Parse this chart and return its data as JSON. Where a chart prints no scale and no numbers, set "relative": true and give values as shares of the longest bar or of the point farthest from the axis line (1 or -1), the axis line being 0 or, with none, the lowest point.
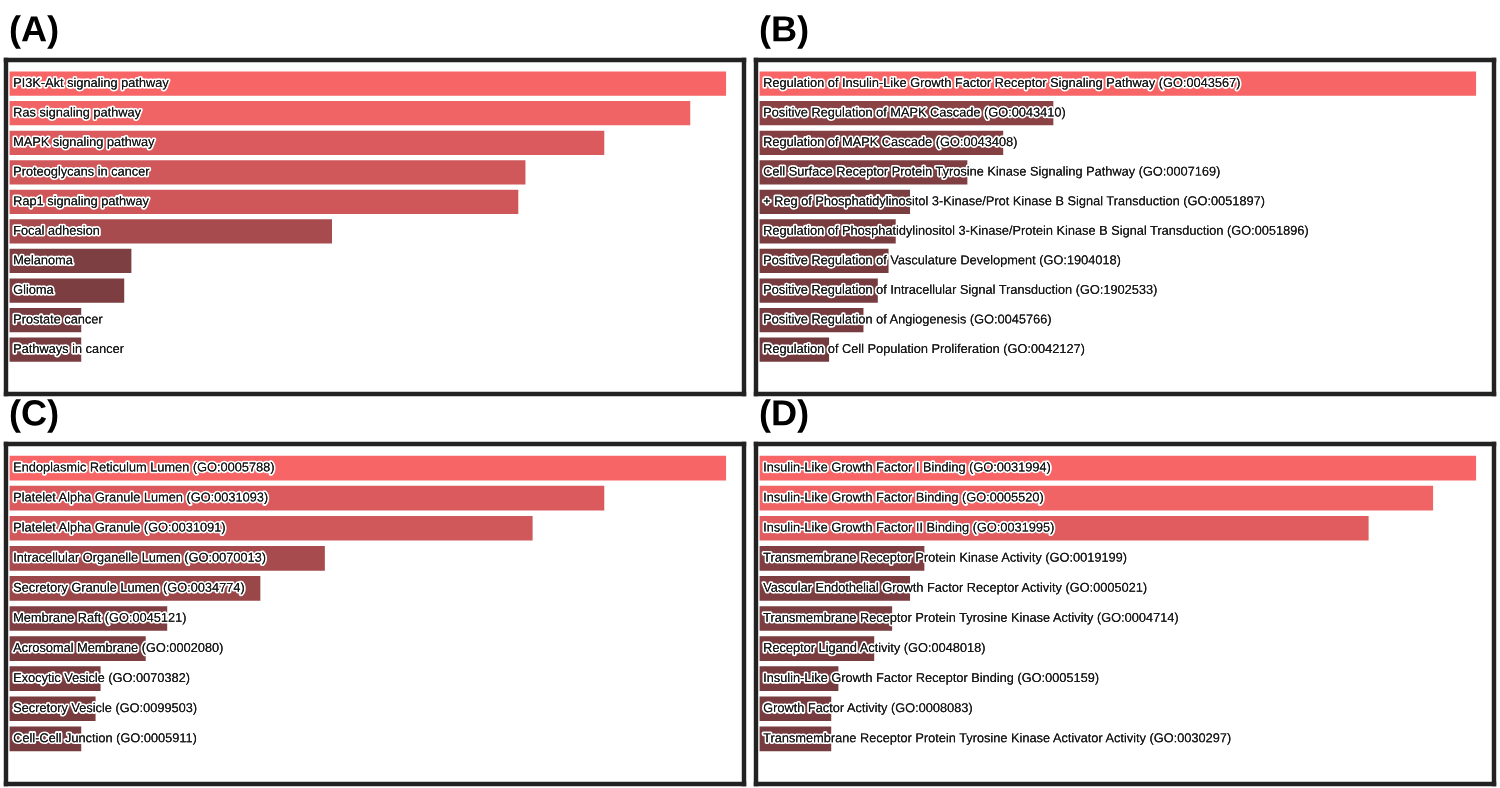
{
  "chart_data": [
    {
      "type": "bar",
      "orientation": "horizontal",
      "relative": true,
      "title": "(A)",
      "categories": [
        "PI3K-Akt signaling pathway",
        "Ras signaling pathway",
        "MAPK signaling pathway",
        "Proteoglycans in cancer",
        "Rap1 signaling pathway",
        "Focal adhesion",
        "Melanoma",
        "Glioma",
        "Prostate cancer",
        "Pathways in cancer"
      ],
      "values": [
        1,
        0.95,
        0.83,
        0.72,
        0.71,
        0.45,
        0.17,
        0.16,
        0.1,
        0.1
      ],
      "colors": [
        "#f86567",
        "#f06466",
        "#da5a5d",
        "#d0585b",
        "#cf575a",
        "#a84b4e",
        "#7d3f42",
        "#7c3e41",
        "#773d40",
        "#773d40"
      ]
    },
    {
      "type": "bar",
      "orientation": "horizontal",
      "relative": true,
      "title": "(B)",
      "categories": [
        "Regulation of Insulin-Like Growth Factor Receptor Signaling Pathway (GO:0043567)",
        "Positive Regulation of MAPK Cascade (GO:0043410)",
        "Regulation of MAPK Cascade (GO:0043408)",
        "Cell Surface Receptor Protein Tyrosine Kinase Signaling Pathway (GO:0007169)",
        "+ Reg of Phosphatidylinositol 3-Kinase/Prot Kinase B Signal Transduction (GO:0051897)",
        "Regulation of Phosphatidylinositol 3-Kinase/Protein Kinase B Signal Transduction (GO:0051896)",
        "Positive Regulation of Vasculature Development (GO:1904018)",
        "Positive Regulation of Intracellular Signal Transduction (GO:1902533)",
        "Positive Regulation of Angiogenesis (GO:0045766)",
        "Regulation of Cell Population Proliferation (GO:0042127)"
      ],
      "values": [
        1,
        0.41,
        0.34,
        0.29,
        0.21,
        0.19,
        0.18,
        0.165,
        0.145,
        0.097
      ],
      "colors": [
        "#f86567",
        "#8a4245",
        "#843f42",
        "#7f3e41",
        "#7a3d40",
        "#793d40",
        "#783c3f",
        "#773c3f",
        "#763c3f",
        "#743b3e"
      ]
    },
    {
      "type": "bar",
      "orientation": "horizontal",
      "relative": true,
      "title": "(C)",
      "categories": [
        "Endoplasmic Reticulum Lumen (GO:0005788)",
        "Platelet Alpha Granule Lumen (GO:0031093)",
        "Platelet Alpha Granule (GO:0031091)",
        "Intracellular Organelle Lumen (GO:0070013)",
        "Secretory Granule Lumen (GO:0034774)",
        "Membrane Raft (GO:0045121)",
        "Acrosomal Membrane (GO:0002080)",
        "Exocytic Vesicle (GO:0070382)",
        "Secretory Vesicle (GO:0099503)",
        "Cell-Cell Junction (GO:0005911)"
      ],
      "values": [
        1,
        0.83,
        0.73,
        0.44,
        0.35,
        0.22,
        0.19,
        0.127,
        0.12,
        0.1
      ],
      "colors": [
        "#f86567",
        "#da5a5d",
        "#d0585b",
        "#a84b4e",
        "#9a474a",
        "#7f3f42",
        "#7c3e41",
        "#793d40",
        "#783c3f",
        "#773c3f"
      ]
    },
    {
      "type": "bar",
      "orientation": "horizontal",
      "relative": true,
      "title": "(D)",
      "categories": [
        "Insulin-Like Growth Factor I Binding (GO:0031994)",
        "Insulin-Like Growth Factor Binding (GO:0005520)",
        "Insulin-Like Growth Factor II Binding (GO:0031995)",
        "Transmembrane Receptor Protein Kinase Activity (GO:0019199)",
        "Vascular Endothelial Growth Factor Receptor Activity (GO:0005021)",
        "Transmembrane Receptor Protein Tyrosine Kinase Activity (GO:0004714)",
        "Receptor Ligand Activity (GO:0048018)",
        "Insulin-Like Growth Factor Receptor Binding (GO:0005159)",
        "Growth Factor Activity (GO:0008083)",
        "Transmembrane Receptor Protein Tyrosine Kinase Activator Activity (GO:0030297)"
      ],
      "values": [
        1,
        0.94,
        0.85,
        0.23,
        0.21,
        0.185,
        0.16,
        0.11,
        0.1,
        0.1
      ],
      "colors": [
        "#f86567",
        "#f16466",
        "#e05c5f",
        "#7f3f42",
        "#7d3e41",
        "#7b3e41",
        "#793d40",
        "#773c3f",
        "#763c3f",
        "#763c3f"
      ]
    }
  ]
}
